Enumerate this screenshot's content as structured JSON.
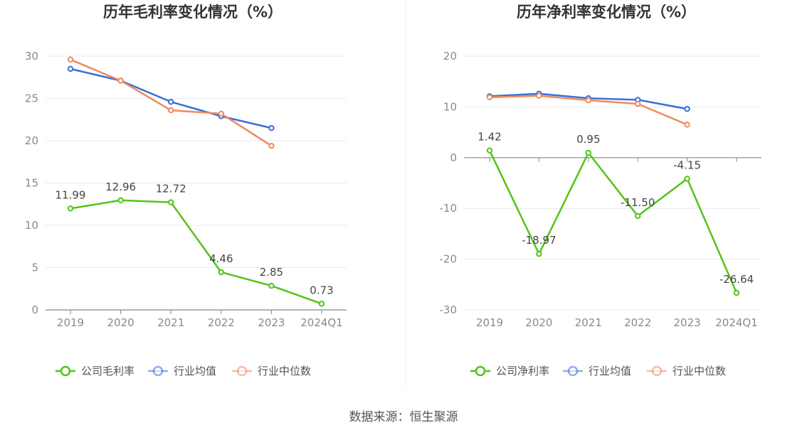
{
  "source": "数据来源：恒生聚源",
  "chart_data": [
    {
      "type": "line",
      "title": "历年毛利率变化情况（%）",
      "categories": [
        "2019",
        "2020",
        "2021",
        "2022",
        "2023",
        "2024Q1"
      ],
      "ylim": [
        0,
        30
      ],
      "yticks": [
        "0",
        "5",
        "10",
        "15",
        "20",
        "25",
        "30"
      ],
      "series": [
        {
          "name": "公司毛利率",
          "color": "#52c41a",
          "values": [
            11.99,
            12.96,
            12.72,
            4.46,
            2.85,
            0.73
          ],
          "labels": [
            "11.99",
            "12.96",
            "12.72",
            "4.46",
            "2.85",
            "0.73"
          ]
        },
        {
          "name": "行业均值",
          "color": "#3a6fd8",
          "values": [
            28.5,
            27.1,
            24.6,
            22.9,
            21.5,
            null
          ]
        },
        {
          "name": "行业中位数",
          "color": "#f08a5d",
          "values": [
            29.6,
            27.1,
            23.6,
            23.2,
            19.4,
            null
          ]
        }
      ]
    },
    {
      "type": "line",
      "title": "历年净利率变化情况（%）",
      "categories": [
        "2019",
        "2020",
        "2021",
        "2022",
        "2023",
        "2024Q1"
      ],
      "ylim": [
        -30,
        20
      ],
      "yticks": [
        "-30",
        "-20",
        "-10",
        "0",
        "10",
        "20"
      ],
      "series": [
        {
          "name": "公司净利率",
          "color": "#52c41a",
          "values": [
            1.42,
            -18.97,
            0.95,
            -11.5,
            -4.15,
            -26.64
          ],
          "labels": [
            "1.42",
            "-18.97",
            "0.95",
            "-11.50",
            "-4.15",
            "-26.64"
          ]
        },
        {
          "name": "行业均值",
          "color": "#3a6fd8",
          "values": [
            12.1,
            12.6,
            11.7,
            11.4,
            9.6,
            null
          ]
        },
        {
          "name": "行业中位数",
          "color": "#f08a5d",
          "values": [
            11.9,
            12.2,
            11.3,
            10.6,
            6.5,
            null
          ]
        }
      ]
    }
  ]
}
